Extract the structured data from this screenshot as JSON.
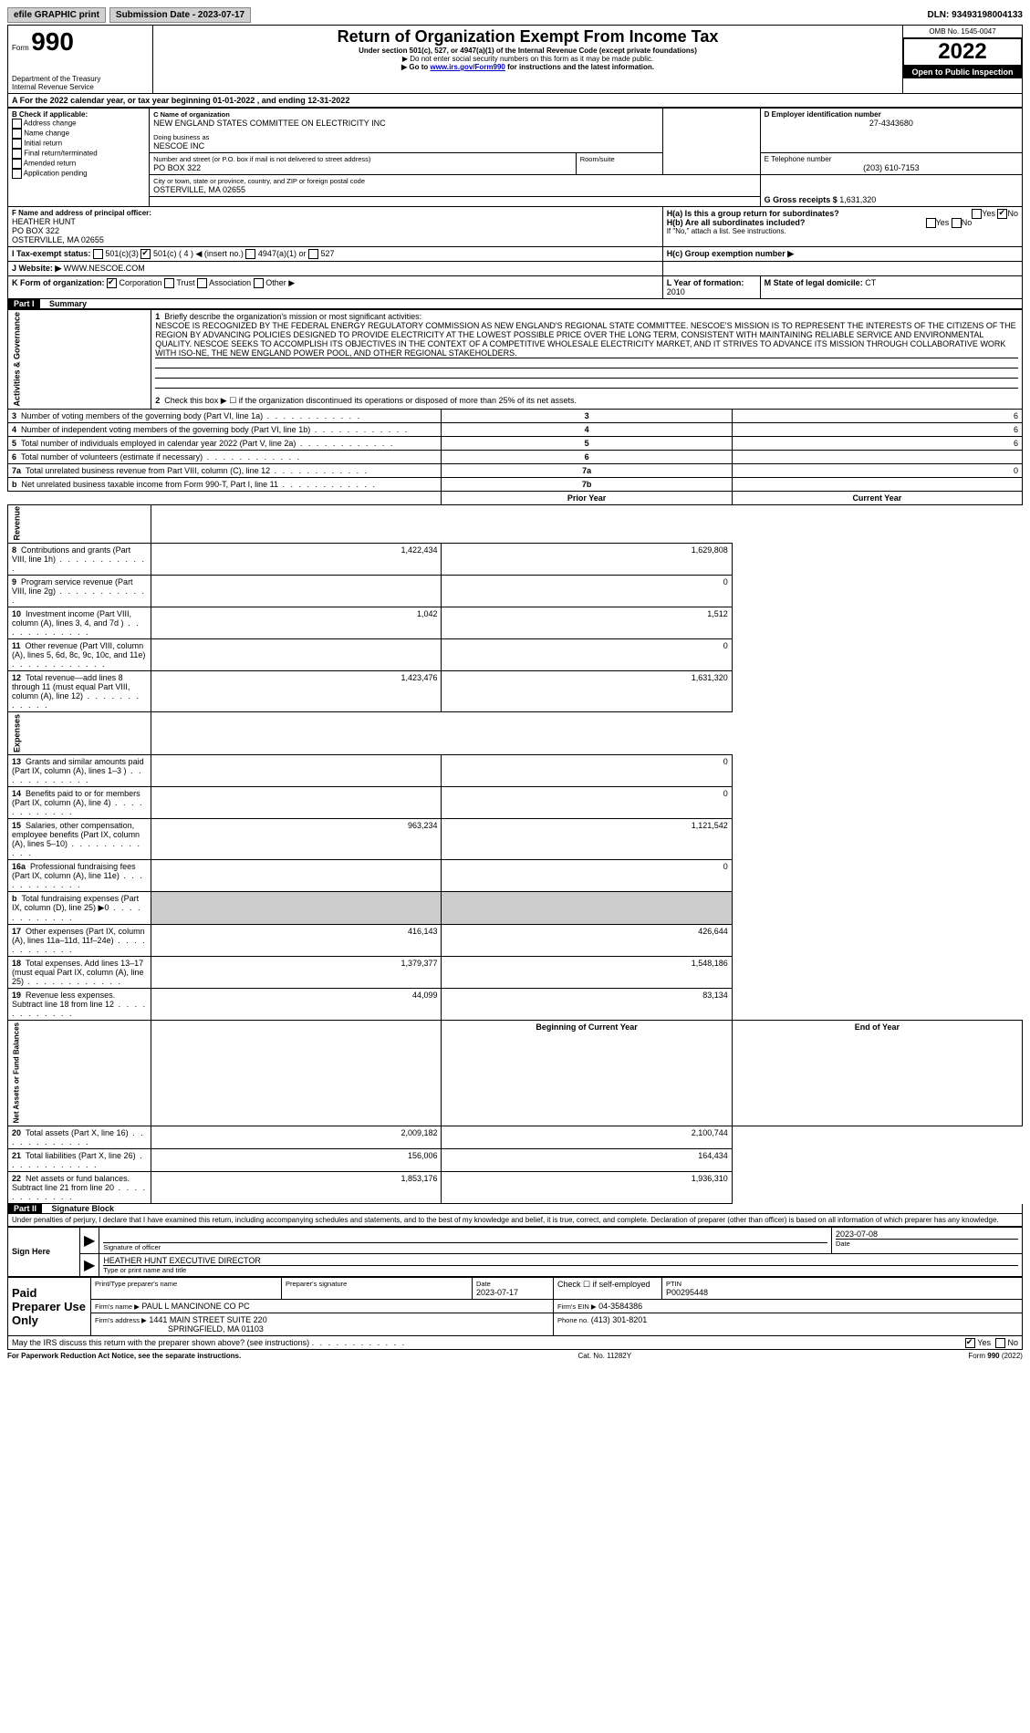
{
  "topbar": {
    "efile": "efile GRAPHIC print",
    "submission_label": "Submission Date - 2023-07-17",
    "dln": "DLN: 93493198004133"
  },
  "header": {
    "form_label": "Form",
    "form_number": "990",
    "title": "Return of Organization Exempt From Income Tax",
    "subtitle": "Under section 501(c), 527, or 4947(a)(1) of the Internal Revenue Code (except private foundations)",
    "note1": "▶ Do not enter social security numbers on this form as it may be made public.",
    "note2_pre": "▶ Go to ",
    "note2_link": "www.irs.gov/Form990",
    "note2_post": " for instructions and the latest information.",
    "dept": "Department of the Treasury",
    "irs": "Internal Revenue Service",
    "omb": "OMB No. 1545-0047",
    "year": "2022",
    "open_public": "Open to Public Inspection"
  },
  "line_a": "A For the 2022 calendar year, or tax year beginning 01-01-2022   , and ending 12-31-2022",
  "box_b": {
    "label": "B Check if applicable:",
    "items": [
      "Address change",
      "Name change",
      "Initial return",
      "Final return/terminated",
      "Amended return",
      "Application pending"
    ]
  },
  "box_c": {
    "label": "C Name of organization",
    "org": "NEW ENGLAND STATES COMMITTEE ON ELECTRICITY INC",
    "dba_label": "Doing business as",
    "dba": "NESCOE INC",
    "street_label": "Number and street (or P.O. box if mail is not delivered to street address)",
    "street": "PO BOX 322",
    "room_label": "Room/suite",
    "city_label": "City or town, state or province, country, and ZIP or foreign postal code",
    "city": "OSTERVILLE, MA  02655"
  },
  "box_d": {
    "label": "D Employer identification number",
    "value": "27-4343680"
  },
  "box_e": {
    "label": "E Telephone number",
    "value": "(203) 610-7153"
  },
  "box_g": {
    "label": "G Gross receipts $",
    "value": "1,631,320"
  },
  "box_f": {
    "label": "F  Name and address of principal officer:",
    "name": "HEATHER HUNT",
    "addr1": "PO BOX 322",
    "addr2": "OSTERVILLE, MA  02655"
  },
  "box_h": {
    "h_a": "H(a)  Is this a group return for subordinates?",
    "h_b": "H(b)  Are all subordinates included?",
    "h_note": "If \"No,\" attach a list. See instructions.",
    "h_c": "H(c)  Group exemption number ▶",
    "yes": "Yes",
    "no": "No"
  },
  "box_i": {
    "label": "I  Tax-exempt status:",
    "c3": "501(c)(3)",
    "c": "501(c) ( 4 ) ◀ (insert no.)",
    "a1": "4947(a)(1) or",
    "527": "527"
  },
  "box_j": {
    "label": "J  Website: ▶",
    "value": "WWW.NESCOE.COM"
  },
  "box_k": {
    "label": "K Form of organization:",
    "corp": "Corporation",
    "trust": "Trust",
    "assoc": "Association",
    "other": "Other ▶"
  },
  "box_l": {
    "label": "L Year of formation:",
    "value": "2010"
  },
  "box_m": {
    "label": "M State of legal domicile:",
    "value": "CT"
  },
  "part1": {
    "label": "Part I",
    "title": "Summary",
    "side_ag": "Activities & Governance",
    "side_rev": "Revenue",
    "side_exp": "Expenses",
    "side_na": "Net Assets or Fund Balances",
    "q1": "Briefly describe the organization's mission or most significant activities:",
    "mission": "NESCOE IS RECOGNIZED BY THE FEDERAL ENERGY REGULATORY COMMISSION AS NEW ENGLAND'S REGIONAL STATE COMMITTEE. NESCOE'S MISSION IS TO REPRESENT THE INTERESTS OF THE CITIZENS OF THE REGION BY ADVANCING POLICIES DESIGNED TO PROVIDE ELECTRICITY AT THE LOWEST POSSIBLE PRICE OVER THE LONG TERM, CONSISTENT WITH MAINTAINING RELIABLE SERVICE AND ENVIRONMENTAL QUALITY. NESCOE SEEKS TO ACCOMPLISH ITS OBJECTIVES IN THE CONTEXT OF A COMPETITIVE WHOLESALE ELECTRICITY MARKET, AND IT STRIVES TO ADVANCE ITS MISSION THROUGH COLLABORATIVE WORK WITH ISO-NE, THE NEW ENGLAND POWER POOL, AND OTHER REGIONAL STAKEHOLDERS.",
    "q2": "Check this box ▶ ☐ if the organization discontinued its operations or disposed of more than 25% of its net assets.",
    "rows_ag": [
      {
        "n": "3",
        "t": "Number of voting members of the governing body (Part VI, line 1a)",
        "box": "3",
        "v": "6"
      },
      {
        "n": "4",
        "t": "Number of independent voting members of the governing body (Part VI, line 1b)",
        "box": "4",
        "v": "6"
      },
      {
        "n": "5",
        "t": "Total number of individuals employed in calendar year 2022 (Part V, line 2a)",
        "box": "5",
        "v": "6"
      },
      {
        "n": "6",
        "t": "Total number of volunteers (estimate if necessary)",
        "box": "6",
        "v": ""
      },
      {
        "n": "7a",
        "t": "Total unrelated business revenue from Part VIII, column (C), line 12",
        "box": "7a",
        "v": "0"
      },
      {
        "n": "b",
        "t": "Net unrelated business taxable income from Form 990-T, Part I, line 11",
        "box": "7b",
        "v": ""
      }
    ],
    "hdr_prior": "Prior Year",
    "hdr_current": "Current Year",
    "rows_rev": [
      {
        "n": "8",
        "t": "Contributions and grants (Part VIII, line 1h)",
        "p": "1,422,434",
        "c": "1,629,808"
      },
      {
        "n": "9",
        "t": "Program service revenue (Part VIII, line 2g)",
        "p": "",
        "c": "0"
      },
      {
        "n": "10",
        "t": "Investment income (Part VIII, column (A), lines 3, 4, and 7d )",
        "p": "1,042",
        "c": "1,512"
      },
      {
        "n": "11",
        "t": "Other revenue (Part VIII, column (A), lines 5, 6d, 8c, 9c, 10c, and 11e)",
        "p": "",
        "c": "0"
      },
      {
        "n": "12",
        "t": "Total revenue—add lines 8 through 11 (must equal Part VIII, column (A), line 12)",
        "p": "1,423,476",
        "c": "1,631,320"
      }
    ],
    "rows_exp": [
      {
        "n": "13",
        "t": "Grants and similar amounts paid (Part IX, column (A), lines 1–3 )",
        "p": "",
        "c": "0"
      },
      {
        "n": "14",
        "t": "Benefits paid to or for members (Part IX, column (A), line 4)",
        "p": "",
        "c": "0"
      },
      {
        "n": "15",
        "t": "Salaries, other compensation, employee benefits (Part IX, column (A), lines 5–10)",
        "p": "963,234",
        "c": "1,121,542"
      },
      {
        "n": "16a",
        "t": "Professional fundraising fees (Part IX, column (A), line 11e)",
        "p": "",
        "c": "0"
      },
      {
        "n": "b",
        "t": "Total fundraising expenses (Part IX, column (D), line 25) ▶0",
        "p": "SHADE",
        "c": "SHADE"
      },
      {
        "n": "17",
        "t": "Other expenses (Part IX, column (A), lines 11a–11d, 11f–24e)",
        "p": "416,143",
        "c": "426,644"
      },
      {
        "n": "18",
        "t": "Total expenses. Add lines 13–17 (must equal Part IX, column (A), line 25)",
        "p": "1,379,377",
        "c": "1,548,186"
      },
      {
        "n": "19",
        "t": "Revenue less expenses. Subtract line 18 from line 12",
        "p": "44,099",
        "c": "83,134"
      }
    ],
    "hdr_begin": "Beginning of Current Year",
    "hdr_end": "End of Year",
    "rows_na": [
      {
        "n": "20",
        "t": "Total assets (Part X, line 16)",
        "p": "2,009,182",
        "c": "2,100,744"
      },
      {
        "n": "21",
        "t": "Total liabilities (Part X, line 26)",
        "p": "156,006",
        "c": "164,434"
      },
      {
        "n": "22",
        "t": "Net assets or fund balances. Subtract line 21 from line 20",
        "p": "1,853,176",
        "c": "1,936,310"
      }
    ]
  },
  "part2": {
    "label": "Part II",
    "title": "Signature Block",
    "decl": "Under penalties of perjury, I declare that I have examined this return, including accompanying schedules and statements, and to the best of my knowledge and belief, it is true, correct, and complete. Declaration of preparer (other than officer) is based on all information of which preparer has any knowledge.",
    "sign_here": "Sign Here",
    "sig_officer": "Signature of officer",
    "sig_date": "Date",
    "sig_date_val": "2023-07-08",
    "officer_name": "HEATHER HUNT  EXECUTIVE DIRECTOR",
    "type_name": "Type or print name and title",
    "paid": "Paid Preparer Use Only",
    "prep_name_lbl": "Print/Type preparer's name",
    "prep_sig_lbl": "Preparer's signature",
    "prep_date_lbl": "Date",
    "prep_date": "2023-07-17",
    "self_emp": "Check ☐ if self-employed",
    "ptin_lbl": "PTIN",
    "ptin": "P00295448",
    "firm_name_lbl": "Firm's name    ▶",
    "firm_name": "PAUL L MANCINONE CO PC",
    "firm_ein_lbl": "Firm's EIN ▶",
    "firm_ein": "04-3584386",
    "firm_addr_lbl": "Firm's address ▶",
    "firm_addr1": "1441 MAIN STREET SUITE 220",
    "firm_addr2": "SPRINGFIELD, MA  01103",
    "phone_lbl": "Phone no.",
    "phone": "(413) 301-8201",
    "discuss": "May the IRS discuss this return with the preparer shown above? (see instructions)",
    "yes": "Yes",
    "no": "No"
  },
  "footer": {
    "pra": "For Paperwork Reduction Act Notice, see the separate instructions.",
    "cat": "Cat. No. 11282Y",
    "form": "Form 990 (2022)"
  }
}
